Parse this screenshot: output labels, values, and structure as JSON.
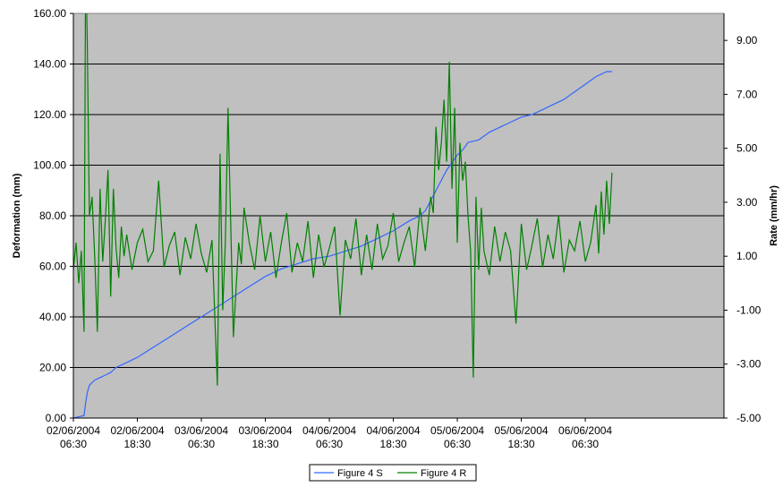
{
  "chart_data": {
    "type": "line",
    "title": "",
    "ylabel": "Deformation (mm)",
    "y2label": "Rate (mm/hr)",
    "xlabel": "",
    "ylim": [
      0,
      160
    ],
    "y2lim": [
      -5,
      10
    ],
    "xlim_hours": [
      0,
      122
    ],
    "x_start_datetime": "2004-06-02 06:30",
    "grid": true,
    "legend_position": "bottom",
    "colors": {
      "plot_background": "#c0c0c0",
      "series_s": "#3366ff",
      "series_r": "#008000"
    },
    "y_ticks": [
      "0.00",
      "20.00",
      "40.00",
      "60.00",
      "80.00",
      "100.00",
      "120.00",
      "140.00",
      "160.00"
    ],
    "y2_ticks": [
      "-5.00",
      "-3.00",
      "-1.00",
      "1.00",
      "3.00",
      "5.00",
      "7.00",
      "9.00"
    ],
    "x_ticks": [
      {
        "date": "02/06/2004",
        "time": "06:30",
        "hours": 0
      },
      {
        "date": "02/06/2004",
        "time": "18:30",
        "hours": 12
      },
      {
        "date": "03/06/2004",
        "time": "06:30",
        "hours": 24
      },
      {
        "date": "03/06/2004",
        "time": "18:30",
        "hours": 36
      },
      {
        "date": "04/06/2004",
        "time": "06:30",
        "hours": 48
      },
      {
        "date": "04/06/2004",
        "time": "18:30",
        "hours": 60
      },
      {
        "date": "05/06/2004",
        "time": "06:30",
        "hours": 72
      },
      {
        "date": "05/06/2004",
        "time": "18:30",
        "hours": 84
      },
      {
        "date": "06/06/2004",
        "time": "06:30",
        "hours": 96
      }
    ],
    "series": [
      {
        "name": "Figure 4 S",
        "axis": "left",
        "x_hours": [
          0,
          2,
          2.3,
          2.6,
          3,
          4,
          5,
          6,
          7,
          8,
          10,
          12,
          15,
          18,
          21,
          24,
          27,
          30,
          33,
          36,
          39,
          42,
          45,
          48,
          51,
          54,
          57,
          60,
          63,
          65,
          66,
          67,
          68,
          69,
          70,
          71,
          72,
          73,
          74,
          76,
          78,
          80,
          82,
          84,
          86,
          88,
          90,
          92,
          94,
          96,
          98,
          100,
          101
        ],
        "values": [
          0,
          1,
          6,
          10,
          13,
          15,
          16,
          17,
          18,
          20,
          22,
          24,
          28,
          32,
          36,
          40,
          44,
          48,
          52,
          56,
          59,
          61,
          63,
          64,
          66,
          68,
          71,
          74,
          78,
          80,
          82,
          86,
          90,
          94,
          98,
          101,
          104,
          106,
          109,
          110,
          113,
          115,
          117,
          119,
          120,
          122,
          124,
          126,
          129,
          132,
          135,
          137,
          137
        ]
      },
      {
        "name": "Figure 4 R",
        "axis": "right",
        "x_hours": [
          0,
          0.5,
          1,
          1.5,
          2,
          2.3,
          2.6,
          3,
          3.5,
          4,
          4.5,
          5,
          5.5,
          6,
          6.5,
          7,
          7.5,
          8,
          8.5,
          9,
          9.5,
          10,
          11,
          12,
          13,
          14,
          15,
          16,
          17,
          18,
          19,
          20,
          21,
          22,
          23,
          24,
          25,
          26,
          27,
          27.5,
          28,
          28.5,
          29,
          30,
          31,
          31.5,
          32,
          33,
          34,
          35,
          36,
          37,
          38,
          39,
          40,
          41,
          42,
          43,
          44,
          45,
          46,
          47,
          48,
          49,
          50,
          51,
          52,
          53,
          54,
          55,
          56,
          57,
          58,
          59,
          60,
          61,
          62,
          63,
          64,
          65,
          66,
          67,
          67.5,
          68,
          68.5,
          69,
          69.5,
          70,
          70.5,
          71,
          71.5,
          72,
          72.5,
          73,
          73.5,
          74,
          74.5,
          75,
          75.5,
          76,
          76.5,
          77,
          78,
          79,
          80,
          81,
          82,
          83,
          84,
          85,
          86,
          87,
          88,
          89,
          90,
          91,
          92,
          93,
          94,
          95,
          96,
          97,
          98,
          98.5,
          99,
          99.5,
          100,
          100.5,
          101
        ],
        "values": [
          0.5,
          1.5,
          0,
          1.2,
          -1.8,
          12,
          9,
          2.5,
          3.2,
          1,
          -1.8,
          3.5,
          0.8,
          2.4,
          4.2,
          -0.5,
          3.5,
          1.3,
          0.2,
          2.1,
          1,
          1.8,
          0.5,
          1.5,
          2,
          0.8,
          1.2,
          3.8,
          0.6,
          1.4,
          1.9,
          0.3,
          1.7,
          0.9,
          2.2,
          1.1,
          0.4,
          1.6,
          -3.8,
          4.8,
          -1,
          1.5,
          6.5,
          -2,
          1.5,
          0.7,
          2.8,
          1.5,
          0.5,
          2.5,
          0.8,
          1.9,
          0.2,
          1.5,
          2.6,
          0.4,
          1.5,
          0.8,
          2.3,
          0.2,
          1.8,
          0.6,
          1.3,
          2.1,
          -1.2,
          1.6,
          0.9,
          2.4,
          0.3,
          1.8,
          0.5,
          2.2,
          0.9,
          1.4,
          2.6,
          0.8,
          1.5,
          2.1,
          0.6,
          2.8,
          1.2,
          3.2,
          2.6,
          5.8,
          4.2,
          5.2,
          6.8,
          4.5,
          8.2,
          3.5,
          6.5,
          1.5,
          5.2,
          3.8,
          4.5,
          2.5,
          1.2,
          -3.5,
          3.2,
          0.5,
          2.8,
          1.2,
          0.3,
          2.1,
          0.8,
          1.9,
          1.2,
          -1.5,
          2.2,
          0.5,
          1.4,
          2.4,
          0.6,
          1.8,
          0.9,
          2.5,
          0.4,
          1.6,
          1.2,
          2.3,
          0.8,
          1.5,
          2.9,
          1.1,
          3.4,
          1.8,
          3.8,
          2.2,
          4.1
        ]
      }
    ]
  }
}
